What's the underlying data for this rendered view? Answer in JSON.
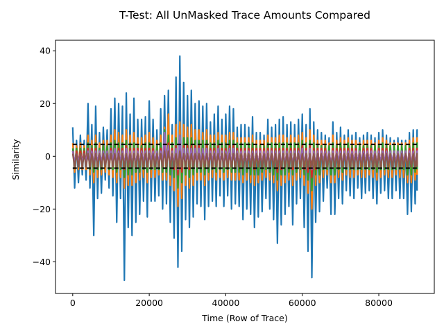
{
  "chart_data": {
    "type": "line",
    "title": "T-Test: All UnMasked Trace Amounts Compared",
    "xlabel": "Time (Row of Trace)",
    "ylabel": "Similarity",
    "xlim": [
      -4500,
      94500
    ],
    "ylim": [
      -52,
      44
    ],
    "x_ticks": [
      0,
      20000,
      40000,
      60000,
      80000
    ],
    "x_tick_labels": [
      "0",
      "20000",
      "40000",
      "60000",
      "80000"
    ],
    "y_ticks": [
      -40,
      -20,
      0,
      20,
      40
    ],
    "y_tick_labels": [
      "−40",
      "−20",
      "0",
      "20",
      "40"
    ],
    "grid": false,
    "legend": "none",
    "x_points": [
      0,
      1000,
      2000,
      3000,
      4000,
      5000,
      6000,
      7000,
      8000,
      9000,
      10000,
      11000,
      12000,
      13000,
      14000,
      15000,
      16000,
      17000,
      18000,
      19000,
      20000,
      21000,
      22000,
      23000,
      24000,
      25000,
      26000,
      27000,
      28000,
      29000,
      30000,
      31000,
      32000,
      33000,
      34000,
      35000,
      36000,
      37000,
      38000,
      39000,
      40000,
      41000,
      42000,
      43000,
      44000,
      45000,
      46000,
      47000,
      48000,
      49000,
      50000,
      51000,
      52000,
      53000,
      54000,
      55000,
      56000,
      57000,
      58000,
      59000,
      60000,
      61000,
      62000,
      63000,
      64000,
      65000,
      66000,
      67000,
      68000,
      69000,
      70000,
      71000,
      72000,
      73000,
      74000,
      75000,
      76000,
      77000,
      78000,
      79000,
      80000,
      81000,
      82000,
      83000,
      84000,
      85000,
      86000,
      87000,
      88000,
      89000,
      90000
    ],
    "series": [
      {
        "color": "#1f77b4",
        "y_max": [
          11,
          6,
          8,
          6,
          20,
          12,
          19,
          9,
          11,
          10,
          18,
          22,
          20,
          19,
          24,
          16,
          22,
          14,
          14,
          15,
          21,
          14,
          10,
          18,
          23,
          25,
          12,
          30,
          38,
          28,
          23,
          25,
          20,
          21,
          19,
          20,
          13,
          16,
          19,
          14,
          16,
          19,
          18,
          11,
          12,
          12,
          11,
          15,
          9,
          9,
          8,
          14,
          11,
          12,
          14,
          15,
          12,
          13,
          12,
          14,
          16,
          12,
          18,
          13,
          10,
          9,
          8,
          7,
          13,
          9,
          11,
          8,
          10,
          8,
          9,
          7,
          8,
          9,
          8,
          7,
          9,
          10,
          8,
          7,
          6,
          7,
          6,
          6,
          9,
          10,
          10
        ],
        "y_min": [
          -12,
          -10,
          -7,
          -9,
          -12,
          -30,
          -16,
          -14,
          -9,
          -12,
          -15,
          -25,
          -16,
          -47,
          -27,
          -30,
          -25,
          -22,
          -17,
          -23,
          -17,
          -17,
          -15,
          -20,
          -18,
          -25,
          -31,
          -42,
          -36,
          -24,
          -27,
          -23,
          -18,
          -19,
          -24,
          -19,
          -17,
          -19,
          -15,
          -19,
          -15,
          -20,
          -18,
          -19,
          -24,
          -20,
          -22,
          -27,
          -23,
          -21,
          -16,
          -20,
          -24,
          -33,
          -26,
          -22,
          -19,
          -26,
          -18,
          -16,
          -27,
          -36,
          -46,
          -25,
          -21,
          -17,
          -12,
          -22,
          -22,
          -16,
          -18,
          -13,
          -15,
          -16,
          -12,
          -16,
          -14,
          -13,
          -16,
          -18,
          -14,
          -13,
          -16,
          -16,
          -13,
          -16,
          -16,
          -22,
          -21,
          -18,
          -13
        ]
      },
      {
        "color": "#ff7f0e",
        "y_max": [
          5,
          4,
          5,
          4,
          8,
          6,
          8,
          5,
          6,
          6,
          8,
          10,
          9,
          8,
          10,
          8,
          9,
          7,
          7,
          8,
          9,
          7,
          6,
          8,
          11,
          16,
          8,
          12,
          13,
          12,
          11,
          12,
          10,
          10,
          9,
          10,
          8,
          8,
          9,
          8,
          8,
          9,
          9,
          7,
          7,
          7,
          7,
          8,
          6,
          6,
          6,
          8,
          7,
          7,
          8,
          8,
          7,
          8,
          7,
          8,
          9,
          7,
          10,
          8,
          6,
          6,
          6,
          5,
          8,
          6,
          7,
          6,
          7,
          6,
          6,
          5,
          6,
          6,
          6,
          5,
          6,
          7,
          6,
          5,
          5,
          5,
          5,
          5,
          6,
          7,
          7
        ],
        "y_min": [
          -6,
          -5,
          -5,
          -5,
          -7,
          -10,
          -8,
          -7,
          -6,
          -7,
          -8,
          -10,
          -8,
          -12,
          -11,
          -11,
          -10,
          -9,
          -8,
          -10,
          -8,
          -8,
          -7,
          -9,
          -9,
          -11,
          -13,
          -19,
          -16,
          -11,
          -12,
          -11,
          -9,
          -9,
          -11,
          -9,
          -8,
          -9,
          -8,
          -9,
          -8,
          -9,
          -9,
          -9,
          -10,
          -9,
          -10,
          -11,
          -10,
          -9,
          -8,
          -9,
          -10,
          -13,
          -11,
          -10,
          -9,
          -11,
          -9,
          -8,
          -11,
          -14,
          -20,
          -11,
          -10,
          -8,
          -7,
          -10,
          -10,
          -8,
          -9,
          -7,
          -8,
          -8,
          -7,
          -8,
          -8,
          -7,
          -8,
          -9,
          -8,
          -7,
          -8,
          -8,
          -7,
          -8,
          -8,
          -10,
          -10,
          -9,
          -7
        ]
      },
      {
        "color": "#2ca02c",
        "y_max": [
          3,
          3,
          3,
          3,
          5,
          4,
          5,
          3,
          4,
          4,
          5,
          6,
          5,
          5,
          6,
          5,
          5,
          4,
          4,
          5,
          5,
          4,
          4,
          5,
          10,
          8,
          5,
          7,
          8,
          7,
          7,
          7,
          6,
          6,
          6,
          6,
          5,
          5,
          6,
          5,
          5,
          6,
          6,
          5,
          5,
          5,
          5,
          5,
          4,
          4,
          4,
          5,
          5,
          5,
          5,
          5,
          5,
          5,
          5,
          5,
          6,
          5,
          6,
          5,
          4,
          4,
          4,
          4,
          5,
          4,
          5,
          4,
          5,
          4,
          4,
          4,
          4,
          4,
          4,
          4,
          4,
          5,
          4,
          4,
          4,
          4,
          4,
          4,
          4,
          5,
          5
        ],
        "y_min": [
          -4,
          -3,
          -3,
          -3,
          -5,
          -6,
          -5,
          -5,
          -4,
          -5,
          -5,
          -6,
          -5,
          -8,
          -7,
          -7,
          -6,
          -6,
          -5,
          -6,
          -5,
          -5,
          -5,
          -6,
          -6,
          -7,
          -8,
          -12,
          -10,
          -7,
          -8,
          -7,
          -6,
          -6,
          -7,
          -6,
          -5,
          -6,
          -5,
          -6,
          -5,
          -6,
          -6,
          -6,
          -7,
          -6,
          -7,
          -7,
          -7,
          -6,
          -5,
          -6,
          -7,
          -9,
          -7,
          -7,
          -6,
          -7,
          -6,
          -5,
          -7,
          -9,
          -13,
          -7,
          -7,
          -5,
          -5,
          -7,
          -7,
          -5,
          -6,
          -5,
          -5,
          -5,
          -5,
          -5,
          -5,
          -5,
          -5,
          -6,
          -5,
          -5,
          -5,
          -5,
          -5,
          -5,
          -5,
          -7,
          -7,
          -6,
          -5
        ]
      },
      {
        "color": "#d62728",
        "y_max": [
          2,
          2,
          2,
          2,
          3,
          3,
          3,
          2,
          2,
          2,
          3,
          3,
          3,
          3,
          4,
          3,
          3,
          3,
          3,
          3,
          3,
          3,
          2,
          3,
          6,
          5,
          3,
          4,
          5,
          4,
          4,
          4,
          4,
          4,
          3,
          4,
          3,
          3,
          4,
          3,
          3,
          4,
          4,
          3,
          3,
          3,
          3,
          3,
          3,
          3,
          3,
          3,
          3,
          3,
          3,
          3,
          3,
          3,
          3,
          3,
          4,
          3,
          4,
          3,
          3,
          3,
          3,
          2,
          3,
          3,
          3,
          3,
          3,
          3,
          3,
          2,
          3,
          3,
          3,
          2,
          3,
          3,
          3,
          2,
          2,
          2,
          2,
          2,
          3,
          3,
          3
        ],
        "y_min": [
          -3,
          -2,
          -2,
          -2,
          -3,
          -4,
          -3,
          -3,
          -3,
          -3,
          -3,
          -4,
          -3,
          -5,
          -4,
          -4,
          -4,
          -4,
          -3,
          -4,
          -3,
          -3,
          -3,
          -4,
          -4,
          -4,
          -5,
          -7,
          -6,
          -4,
          -5,
          -4,
          -4,
          -4,
          -4,
          -4,
          -3,
          -4,
          -3,
          -4,
          -3,
          -4,
          -4,
          -4,
          -4,
          -4,
          -4,
          -5,
          -4,
          -4,
          -3,
          -4,
          -4,
          -6,
          -5,
          -4,
          -4,
          -5,
          -4,
          -3,
          -5,
          -6,
          -8,
          -5,
          -4,
          -3,
          -3,
          -4,
          -4,
          -3,
          -4,
          -3,
          -3,
          -3,
          -3,
          -3,
          -3,
          -3,
          -3,
          -4,
          -3,
          -3,
          -3,
          -3,
          -3,
          -3,
          -3,
          -4,
          -4,
          -4,
          -3
        ]
      },
      {
        "color": "#9467bd",
        "y_max": [
          2,
          1,
          1,
          1,
          2,
          2,
          2,
          2,
          2,
          2,
          2,
          3,
          2,
          2,
          3,
          2,
          2,
          2,
          2,
          2,
          2,
          2,
          2,
          2,
          9,
          4,
          2,
          3,
          8,
          3,
          3,
          3,
          3,
          3,
          3,
          3,
          2,
          2,
          3,
          2,
          2,
          3,
          3,
          2,
          2,
          2,
          2,
          2,
          2,
          2,
          2,
          2,
          2,
          2,
          2,
          2,
          2,
          2,
          2,
          2,
          3,
          2,
          3,
          2,
          2,
          2,
          2,
          2,
          2,
          2,
          2,
          2,
          2,
          2,
          2,
          2,
          2,
          2,
          2,
          2,
          2,
          2,
          2,
          2,
          2,
          2,
          2,
          2,
          2,
          2,
          2
        ],
        "y_min": [
          -2,
          -2,
          -2,
          -2,
          -2,
          -3,
          -2,
          -2,
          -2,
          -2,
          -2,
          -3,
          -2,
          -3,
          -3,
          -3,
          -3,
          -3,
          -2,
          -3,
          -2,
          -2,
          -2,
          -3,
          -3,
          -3,
          -3,
          -5,
          -4,
          -3,
          -3,
          -3,
          -3,
          -3,
          -3,
          -3,
          -2,
          -3,
          -2,
          -3,
          -2,
          -3,
          -3,
          -3,
          -3,
          -3,
          -3,
          -3,
          -3,
          -3,
          -2,
          -3,
          -3,
          -4,
          -3,
          -3,
          -3,
          -3,
          -3,
          -2,
          -3,
          -4,
          -5,
          -3,
          -3,
          -2,
          -2,
          -3,
          -3,
          -2,
          -3,
          -2,
          -2,
          -2,
          -2,
          -2,
          -2,
          -2,
          -2,
          -3,
          -2,
          -2,
          -2,
          -2,
          -2,
          -2,
          -2,
          -3,
          -3,
          -3,
          -2
        ]
      },
      {
        "color": "#8c564b",
        "y_max": [
          1,
          1,
          1,
          1,
          1,
          1,
          1,
          1,
          1,
          1,
          1,
          1,
          1,
          1,
          1,
          1,
          1,
          1,
          1,
          1,
          1,
          1,
          1,
          1,
          2,
          2,
          1,
          1,
          2,
          1,
          1,
          1,
          1,
          1,
          1,
          1,
          1,
          1,
          1,
          1,
          1,
          1,
          1,
          1,
          1,
          1,
          1,
          1,
          1,
          1,
          1,
          1,
          1,
          1,
          1,
          1,
          1,
          1,
          1,
          1,
          1,
          1,
          1,
          1,
          1,
          1,
          1,
          1,
          1,
          1,
          1,
          1,
          1,
          1,
          1,
          1,
          1,
          1,
          1,
          1,
          1,
          1,
          1,
          1,
          1,
          1,
          1,
          1,
          1,
          1,
          1
        ],
        "y_min": [
          -4,
          -4,
          -4,
          -4,
          -4,
          -4,
          -4,
          -4,
          -4,
          -4,
          -4,
          -4,
          -4,
          -4,
          -4,
          -4,
          -4,
          -4,
          -4,
          -4,
          -4,
          -4,
          -4,
          -4,
          -4,
          -4,
          -4,
          -4,
          -4,
          -4,
          -4,
          -4,
          -4,
          -4,
          -4,
          -4,
          -4,
          -4,
          -4,
          -4,
          -4,
          -4,
          -4,
          -4,
          -4,
          -4,
          -4,
          -4,
          -4,
          -4,
          -4,
          -4,
          -4,
          -4,
          -4,
          -4,
          -4,
          -4,
          -4,
          -4,
          -4,
          -4,
          -4,
          -4,
          -4,
          -4,
          -4,
          -4,
          -4,
          -4,
          -4,
          -4,
          -4,
          -4,
          -4,
          -4,
          -4,
          -4,
          -4,
          -4,
          -4,
          -4,
          -4,
          -4,
          -4,
          -4,
          -4,
          -4,
          -4,
          -4,
          -4
        ]
      }
    ],
    "threshold_lines": [
      {
        "y": 4.5,
        "color": "#000000",
        "style": "dashed",
        "x_range": [
          0,
          90000
        ]
      },
      {
        "y": -4.5,
        "color": "#000000",
        "style": "dashed",
        "x_range": [
          0,
          90000
        ]
      }
    ]
  }
}
